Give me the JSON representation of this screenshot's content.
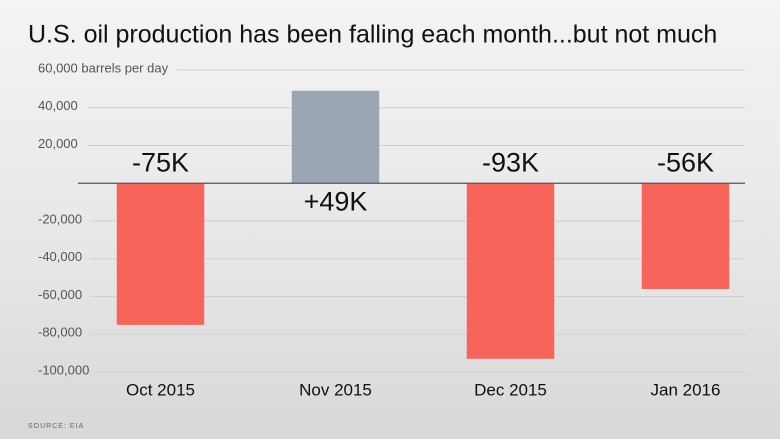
{
  "chart_data": {
    "type": "bar",
    "title": "U.S. oil production has been falling each month...but not much",
    "categories": [
      "Oct 2015",
      "Nov 2015",
      "Dec 2015",
      "Jan 2016"
    ],
    "values": [
      -75000,
      49000,
      -93000,
      -56000
    ],
    "value_labels": [
      "-75K",
      "+49K",
      "-93K",
      "-56K"
    ],
    "colors": [
      "#f7645a",
      "#9ba6b2",
      "#f7645a",
      "#f7645a"
    ],
    "ylim": [
      -100000,
      60000
    ],
    "yticks": [
      {
        "value": 60000,
        "label": "60,000 barrels per day"
      },
      {
        "value": 40000,
        "label": "40,000"
      },
      {
        "value": 20000,
        "label": "20,000"
      },
      {
        "value": -20000,
        "label": "-20,000"
      },
      {
        "value": -40000,
        "label": "-40,000"
      },
      {
        "value": -60000,
        "label": "-60,000"
      },
      {
        "value": -80000,
        "label": "-80,000"
      },
      {
        "value": -100000,
        "label": "-100,000"
      }
    ],
    "grid": true,
    "source": "SOURCE: EIA"
  }
}
